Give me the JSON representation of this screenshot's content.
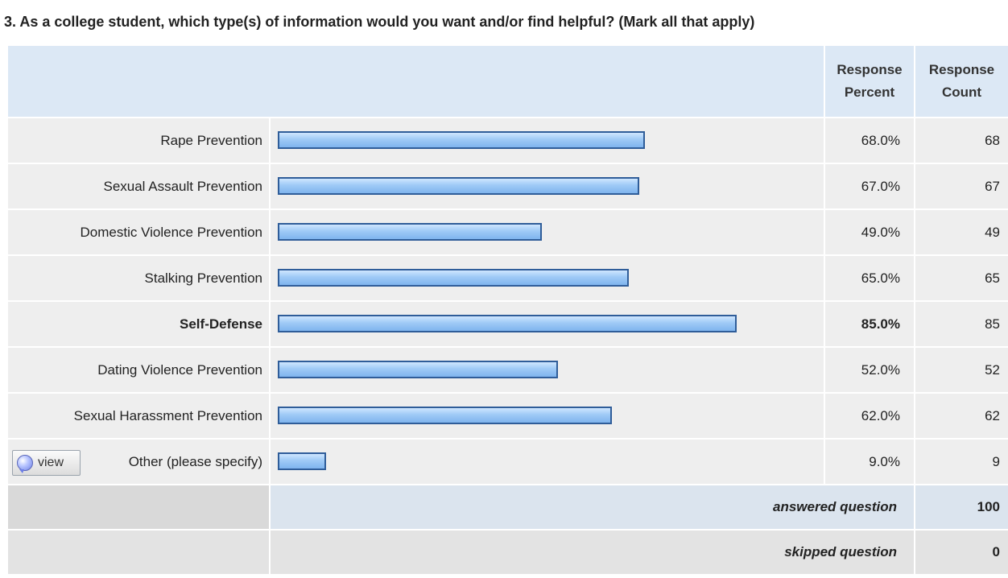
{
  "question": "3. As a college student, which type(s) of information would you want and/or find helpful? (Mark all that apply)",
  "headers": {
    "percent_line1": "Response",
    "percent_line2": "Percent",
    "count_line1": "Response",
    "count_line2": "Count"
  },
  "view_button": "view",
  "summary": {
    "answered_label": "answered question",
    "answered_value": "100",
    "skipped_label": "skipped question",
    "skipped_value": "0"
  },
  "colors": {
    "bar_fill": "#9fcaf6",
    "bar_border": "#2f5d99",
    "header_bg": "#dce8f5"
  },
  "chart_data": {
    "type": "bar",
    "orientation": "horizontal",
    "categories": [
      "Rape Prevention",
      "Sexual Assault Prevention",
      "Domestic Violence Prevention",
      "Stalking Prevention",
      "Self-Defense",
      "Dating Violence Prevention",
      "Sexual Harassment Prevention",
      "Other (please specify)"
    ],
    "percent_values": [
      68.0,
      67.0,
      49.0,
      65.0,
      85.0,
      52.0,
      62.0,
      9.0
    ],
    "percent_labels": [
      "68.0%",
      "67.0%",
      "49.0%",
      "65.0%",
      "85.0%",
      "52.0%",
      "62.0%",
      "9.0%"
    ],
    "counts": [
      "68",
      "67",
      "49",
      "65",
      "85",
      "52",
      "62",
      "9"
    ],
    "highlighted": "Self-Defense",
    "xlim": [
      0,
      100
    ],
    "grid": false
  }
}
